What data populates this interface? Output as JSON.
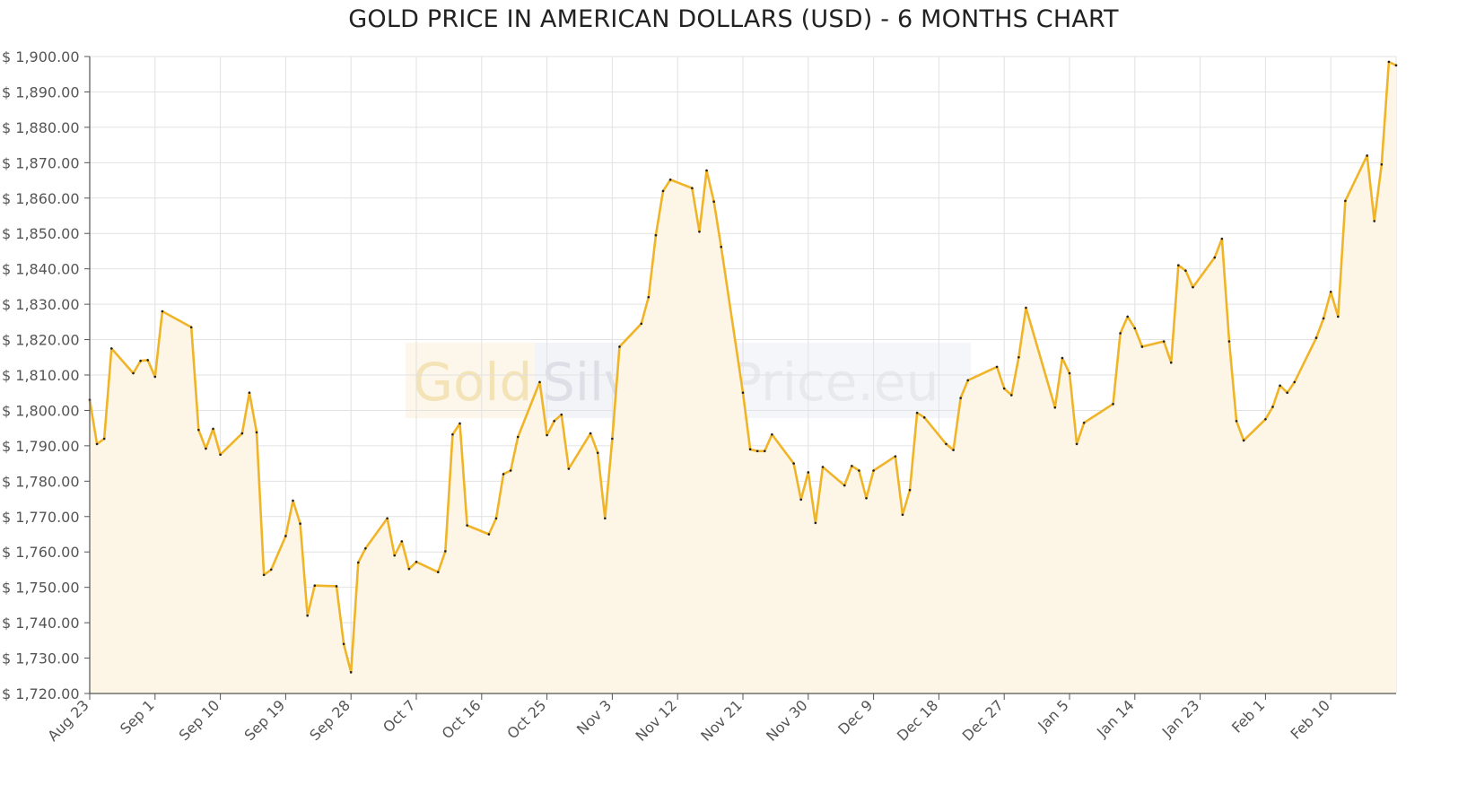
{
  "chart_data": {
    "type": "area",
    "title": "GOLD PRICE IN AMERICAN DOLLARS (USD) - 6 MONTHS CHART",
    "xlabel": "",
    "ylabel": "",
    "ylim": [
      1720,
      1900
    ],
    "yticks": [
      1720,
      1730,
      1740,
      1750,
      1760,
      1770,
      1780,
      1790,
      1800,
      1810,
      1820,
      1830,
      1840,
      1850,
      1860,
      1870,
      1880,
      1890,
      1900
    ],
    "ytick_labels": [
      "$ 1,720.00",
      "$ 1,730.00",
      "$ 1,740.00",
      "$ 1,750.00",
      "$ 1,760.00",
      "$ 1,770.00",
      "$ 1,780.00",
      "$ 1,790.00",
      "$ 1,800.00",
      "$ 1,810.00",
      "$ 1,820.00",
      "$ 1,830.00",
      "$ 1,840.00",
      "$ 1,850.00",
      "$ 1,860.00",
      "$ 1,870.00",
      "$ 1,880.00",
      "$ 1,890.00",
      "$ 1,900.00"
    ],
    "xlim": [
      "2022-08-23",
      "2023-02-19"
    ],
    "xticks": [
      "2022-08-23",
      "2022-09-01",
      "2022-09-10",
      "2022-09-19",
      "2022-09-28",
      "2022-10-07",
      "2022-10-16",
      "2022-10-25",
      "2022-11-03",
      "2022-11-12",
      "2022-11-21",
      "2022-11-30",
      "2022-12-09",
      "2022-12-18",
      "2022-12-27",
      "2023-01-05",
      "2023-01-14",
      "2023-01-23",
      "2023-02-01",
      "2023-02-10"
    ],
    "xtick_labels": [
      "Aug 23",
      "Sep 1",
      "Sep 10",
      "Sep 19",
      "Sep 28",
      "Oct 7",
      "Oct 16",
      "Oct 25",
      "Nov 3",
      "Nov 12",
      "Nov 21",
      "Nov 30",
      "Dec 9",
      "Dec 18",
      "Dec 27",
      "Jan 5",
      "Jan 14",
      "Jan 23",
      "Feb 1",
      "Feb 10"
    ],
    "grid": true,
    "legend": "none",
    "series": [
      {
        "line_color": "#f0b429",
        "fill_color": "#fdf6e6",
        "marker_color": "#222222",
        "points": [
          {
            "x": "2022-08-23",
            "y": 1803.0
          },
          {
            "x": "2022-08-24",
            "y": 1790.5
          },
          {
            "x": "2022-08-25",
            "y": 1792.0
          },
          {
            "x": "2022-08-26",
            "y": 1817.5
          },
          {
            "x": "2022-08-29",
            "y": 1810.5
          },
          {
            "x": "2022-08-30",
            "y": 1814.0
          },
          {
            "x": "2022-08-31",
            "y": 1814.2
          },
          {
            "x": "2022-09-01",
            "y": 1809.5
          },
          {
            "x": "2022-09-02",
            "y": 1828.0
          },
          {
            "x": "2022-09-06",
            "y": 1823.5
          },
          {
            "x": "2022-09-07",
            "y": 1794.5
          },
          {
            "x": "2022-09-08",
            "y": 1789.2
          },
          {
            "x": "2022-09-09",
            "y": 1794.8
          },
          {
            "x": "2022-09-10",
            "y": 1787.5
          },
          {
            "x": "2022-09-13",
            "y": 1793.5
          },
          {
            "x": "2022-09-14",
            "y": 1805.0
          },
          {
            "x": "2022-09-15",
            "y": 1793.8
          },
          {
            "x": "2022-09-16",
            "y": 1753.5
          },
          {
            "x": "2022-09-17",
            "y": 1755.0
          },
          {
            "x": "2022-09-19",
            "y": 1764.5
          },
          {
            "x": "2022-09-20",
            "y": 1774.5
          },
          {
            "x": "2022-09-21",
            "y": 1768.0
          },
          {
            "x": "2022-09-22",
            "y": 1742.0
          },
          {
            "x": "2022-09-23",
            "y": 1750.5
          },
          {
            "x": "2022-09-26",
            "y": 1750.3
          },
          {
            "x": "2022-09-27",
            "y": 1734.0
          },
          {
            "x": "2022-09-28",
            "y": 1726.0
          },
          {
            "x": "2022-09-29",
            "y": 1757.0
          },
          {
            "x": "2022-09-30",
            "y": 1761.0
          },
          {
            "x": "2022-10-03",
            "y": 1769.5
          },
          {
            "x": "2022-10-04",
            "y": 1759.0
          },
          {
            "x": "2022-10-05",
            "y": 1763.0
          },
          {
            "x": "2022-10-06",
            "y": 1755.2
          },
          {
            "x": "2022-10-07",
            "y": 1757.2
          },
          {
            "x": "2022-10-10",
            "y": 1754.3
          },
          {
            "x": "2022-10-11",
            "y": 1760.2
          },
          {
            "x": "2022-10-12",
            "y": 1793.2
          },
          {
            "x": "2022-10-13",
            "y": 1796.3
          },
          {
            "x": "2022-10-14",
            "y": 1767.5
          },
          {
            "x": "2022-10-17",
            "y": 1765.0
          },
          {
            "x": "2022-10-18",
            "y": 1769.5
          },
          {
            "x": "2022-10-19",
            "y": 1782.0
          },
          {
            "x": "2022-10-20",
            "y": 1783.0
          },
          {
            "x": "2022-10-21",
            "y": 1792.5
          },
          {
            "x": "2022-10-24",
            "y": 1808.0
          },
          {
            "x": "2022-10-25",
            "y": 1793.0
          },
          {
            "x": "2022-10-26",
            "y": 1797.0
          },
          {
            "x": "2022-10-27",
            "y": 1798.8
          },
          {
            "x": "2022-10-28",
            "y": 1783.5
          },
          {
            "x": "2022-10-31",
            "y": 1793.5
          },
          {
            "x": "2022-11-01",
            "y": 1788.0
          },
          {
            "x": "2022-11-02",
            "y": 1769.5
          },
          {
            "x": "2022-11-03",
            "y": 1792.0
          },
          {
            "x": "2022-11-04",
            "y": 1818.0
          },
          {
            "x": "2022-11-07",
            "y": 1824.5
          },
          {
            "x": "2022-11-08",
            "y": 1832.0
          },
          {
            "x": "2022-11-09",
            "y": 1849.5
          },
          {
            "x": "2022-11-10",
            "y": 1862.0
          },
          {
            "x": "2022-11-11",
            "y": 1865.2
          },
          {
            "x": "2022-11-14",
            "y": 1862.8
          },
          {
            "x": "2022-11-15",
            "y": 1850.5
          },
          {
            "x": "2022-11-16",
            "y": 1867.8
          },
          {
            "x": "2022-11-17",
            "y": 1859.0
          },
          {
            "x": "2022-11-18",
            "y": 1846.2
          },
          {
            "x": "2022-11-21",
            "y": 1805.0
          },
          {
            "x": "2022-11-22",
            "y": 1789.0
          },
          {
            "x": "2022-11-23",
            "y": 1788.5
          },
          {
            "x": "2022-11-24",
            "y": 1788.5
          },
          {
            "x": "2022-11-25",
            "y": 1793.2
          },
          {
            "x": "2022-11-28",
            "y": 1785.0
          },
          {
            "x": "2022-11-29",
            "y": 1774.8
          },
          {
            "x": "2022-11-30",
            "y": 1782.5
          },
          {
            "x": "2022-12-01",
            "y": 1768.2
          },
          {
            "x": "2022-12-02",
            "y": 1784.0
          },
          {
            "x": "2022-12-05",
            "y": 1778.8
          },
          {
            "x": "2022-12-06",
            "y": 1784.3
          },
          {
            "x": "2022-12-07",
            "y": 1783.0
          },
          {
            "x": "2022-12-08",
            "y": 1775.2
          },
          {
            "x": "2022-12-09",
            "y": 1783.0
          },
          {
            "x": "2022-12-12",
            "y": 1787.0
          },
          {
            "x": "2022-12-13",
            "y": 1770.5
          },
          {
            "x": "2022-12-14",
            "y": 1777.5
          },
          {
            "x": "2022-12-15",
            "y": 1799.3
          },
          {
            "x": "2022-12-16",
            "y": 1798.0
          },
          {
            "x": "2022-12-19",
            "y": 1790.5
          },
          {
            "x": "2022-12-20",
            "y": 1788.8
          },
          {
            "x": "2022-12-21",
            "y": 1803.5
          },
          {
            "x": "2022-12-22",
            "y": 1808.5
          },
          {
            "x": "2022-12-26",
            "y": 1812.3
          },
          {
            "x": "2022-12-27",
            "y": 1806.2
          },
          {
            "x": "2022-12-28",
            "y": 1804.3
          },
          {
            "x": "2022-12-29",
            "y": 1815.0
          },
          {
            "x": "2022-12-30",
            "y": 1829.0
          },
          {
            "x": "2023-01-03",
            "y": 1800.8
          },
          {
            "x": "2023-01-04",
            "y": 1814.8
          },
          {
            "x": "2023-01-05",
            "y": 1810.5
          },
          {
            "x": "2023-01-06",
            "y": 1790.5
          },
          {
            "x": "2023-01-07",
            "y": 1796.5
          },
          {
            "x": "2023-01-11",
            "y": 1801.8
          },
          {
            "x": "2023-01-12",
            "y": 1821.8
          },
          {
            "x": "2023-01-13",
            "y": 1826.5
          },
          {
            "x": "2023-01-14",
            "y": 1823.2
          },
          {
            "x": "2023-01-15",
            "y": 1818.0
          },
          {
            "x": "2023-01-18",
            "y": 1819.5
          },
          {
            "x": "2023-01-19",
            "y": 1813.5
          },
          {
            "x": "2023-01-20",
            "y": 1841.0
          },
          {
            "x": "2023-01-21",
            "y": 1839.5
          },
          {
            "x": "2023-01-22",
            "y": 1834.8
          },
          {
            "x": "2023-01-25",
            "y": 1843.2
          },
          {
            "x": "2023-01-26",
            "y": 1848.5
          },
          {
            "x": "2023-01-27",
            "y": 1819.5
          },
          {
            "x": "2023-01-28",
            "y": 1797.0
          },
          {
            "x": "2023-01-29",
            "y": 1791.5
          },
          {
            "x": "2023-02-01",
            "y": 1797.5
          },
          {
            "x": "2023-02-02",
            "y": 1801.0
          },
          {
            "x": "2023-02-03",
            "y": 1807.0
          },
          {
            "x": "2023-02-04",
            "y": 1805.0
          },
          {
            "x": "2023-02-05",
            "y": 1808.0
          },
          {
            "x": "2023-02-08",
            "y": 1820.5
          },
          {
            "x": "2023-02-09",
            "y": 1826.0
          },
          {
            "x": "2023-02-10",
            "y": 1833.5
          },
          {
            "x": "2023-02-11",
            "y": 1826.5
          },
          {
            "x": "2023-02-12",
            "y": 1859.2
          },
          {
            "x": "2023-02-15",
            "y": 1872.0
          },
          {
            "x": "2023-02-16",
            "y": 1853.5
          },
          {
            "x": "2023-02-17",
            "y": 1869.5
          },
          {
            "x": "2023-02-18",
            "y": 1898.5
          },
          {
            "x": "2023-02-19",
            "y": 1897.5
          }
        ]
      }
    ]
  },
  "watermark": {
    "parts": [
      {
        "text": "Gold",
        "color": "#f3e3b6",
        "bg": "#fcf7ea"
      },
      {
        "text": "Silver",
        "color": "#dcdfe6",
        "bg": "#f3f4f7"
      },
      {
        "text": "Price.eu",
        "color": "#e7e9ee",
        "bg": "#f5f6f9"
      }
    ]
  }
}
